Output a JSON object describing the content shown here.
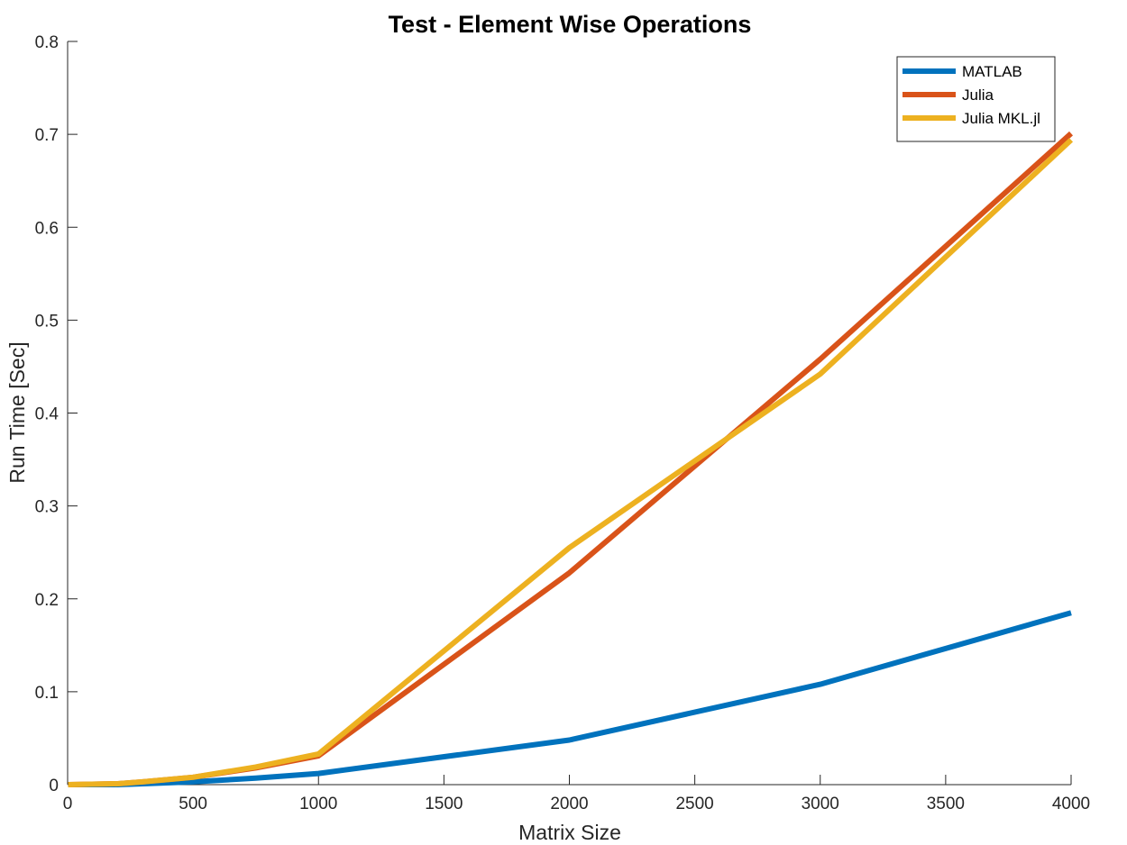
{
  "chart_data": {
    "type": "line",
    "title": "Test - Element Wise Operations",
    "xlabel": "Matrix Size",
    "ylabel": "Run Time  [Sec]",
    "xlim": [
      0,
      4000
    ],
    "ylim": [
      0,
      0.8
    ],
    "xticks": [
      0,
      500,
      1000,
      1500,
      2000,
      2500,
      3000,
      3500,
      4000
    ],
    "yticks": [
      0,
      0.1,
      0.2,
      0.3,
      0.4,
      0.5,
      0.6,
      0.7,
      0.8
    ],
    "xtick_labels": [
      "0",
      "500",
      "1000",
      "1500",
      "2000",
      "2500",
      "3000",
      "3500",
      "4000"
    ],
    "ytick_labels": [
      "0",
      "0.1",
      "0.2",
      "0.3",
      "0.4",
      "0.5",
      "0.6",
      "0.7",
      "0.8"
    ],
    "grid": false,
    "legend_position": "top-right",
    "x": [
      2,
      200,
      300,
      500,
      750,
      1000,
      2000,
      3000,
      4000
    ],
    "series": [
      {
        "name": "MATLAB",
        "color": "#0072BD",
        "values": [
          0.0,
          0.0,
          0.001,
          0.003,
          0.007,
          0.012,
          0.048,
          0.108,
          0.185
        ]
      },
      {
        "name": "Julia",
        "color": "#D95319",
        "values": [
          0.0,
          0.001,
          0.003,
          0.008,
          0.018,
          0.031,
          0.228,
          0.458,
          0.701
        ]
      },
      {
        "name": "Julia MKL.jl",
        "color": "#EDB120",
        "values": [
          0.0,
          0.001,
          0.003,
          0.008,
          0.019,
          0.033,
          0.255,
          0.442,
          0.694
        ]
      }
    ]
  }
}
